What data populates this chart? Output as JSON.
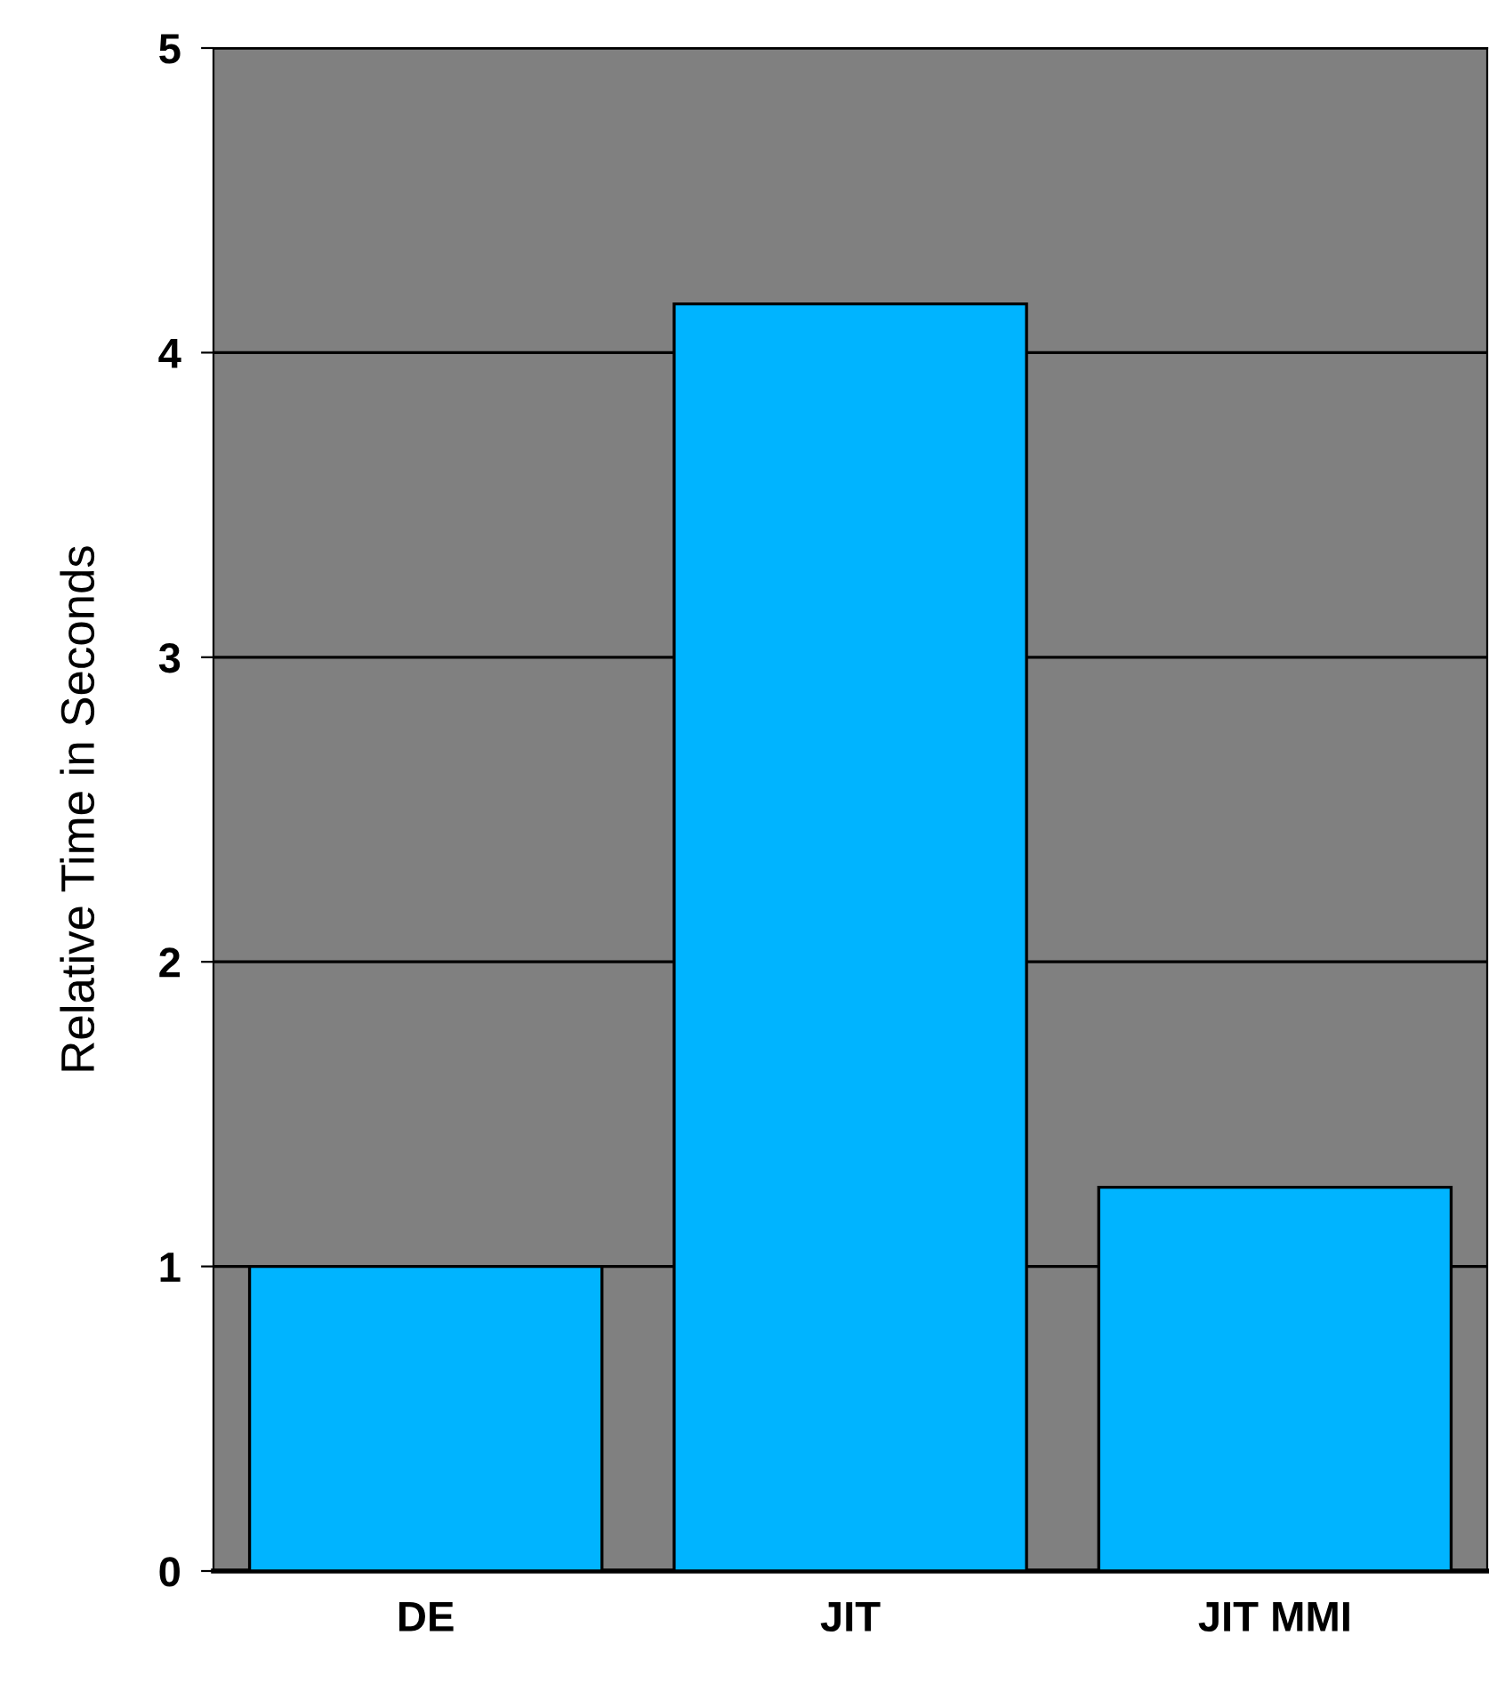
{
  "chart_data": {
    "type": "bar",
    "ylabel": "Relative Time in Seconds",
    "categories": [
      "DE",
      "JIT",
      "JIT MMI"
    ],
    "values": [
      1.0,
      4.16,
      1.26
    ],
    "color": "#00b4ff",
    "ylim": [
      0,
      5
    ],
    "yticks": [
      0,
      1,
      2,
      3,
      4,
      5
    ],
    "grid": "y",
    "legend": false
  }
}
